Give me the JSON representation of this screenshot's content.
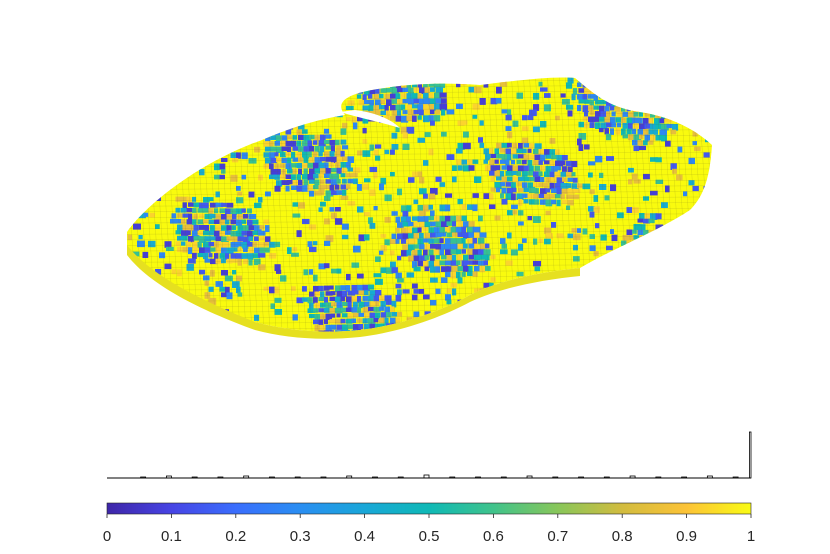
{
  "chart_data": [
    {
      "type": "surface",
      "colormap": "parula",
      "clim": [
        0,
        1
      ],
      "title": "",
      "note": ""
    },
    {
      "type": "bar",
      "title": "",
      "xlim": [
        0,
        1
      ],
      "bins": [
        0.06,
        0.1,
        0.14,
        0.18,
        0.22,
        0.26,
        0.3,
        0.34,
        0.38,
        0.42,
        0.46,
        0.5,
        0.54,
        0.58,
        0.62,
        0.66,
        0.7,
        0.74,
        0.78,
        0.82,
        0.86,
        0.9,
        0.94,
        0.98,
        1.0
      ],
      "values": [
        1,
        2,
        1,
        1,
        2,
        1,
        1,
        1,
        2,
        1,
        1,
        3,
        1,
        1,
        1,
        2,
        1,
        1,
        1,
        2,
        1,
        1,
        2,
        1,
        46
      ]
    },
    {
      "type": "colorbar",
      "colormap": "parula",
      "range": [
        0,
        1
      ],
      "ticks": [
        0,
        0.1,
        0.2,
        0.3,
        0.4,
        0.5,
        0.6,
        0.7,
        0.8,
        0.9,
        1
      ],
      "tick_labels": [
        "0",
        "0.1",
        "0.2",
        "0.3",
        "0.4",
        "0.5",
        "0.6",
        "0.7",
        "0.8",
        "0.9",
        "1"
      ]
    }
  ]
}
